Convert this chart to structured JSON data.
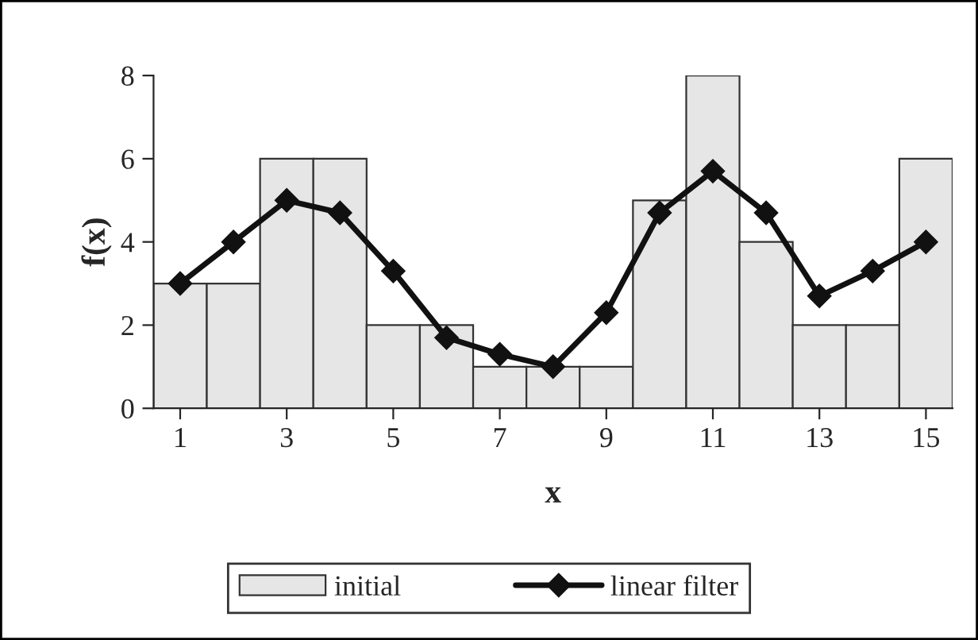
{
  "chart_data": {
    "type": "bar",
    "xlabel": "x",
    "ylabel": "f(x)",
    "x": [
      1,
      2,
      3,
      4,
      5,
      6,
      7,
      8,
      9,
      10,
      11,
      12,
      13,
      14,
      15
    ],
    "series": [
      {
        "name": "initial",
        "color": "#e6e6e6",
        "values": [
          3,
          3,
          6,
          6,
          2,
          2,
          1,
          1,
          1,
          5,
          8,
          4,
          2,
          2,
          6
        ]
      },
      {
        "name": "linear filter",
        "type": "line",
        "color": "#111111",
        "marker": "diamond",
        "values": [
          3,
          4,
          5,
          4.7,
          3.3,
          1.7,
          1.3,
          1,
          2.3,
          4.7,
          5.7,
          4.7,
          2.7,
          3.3,
          4
        ]
      }
    ],
    "xlim": [
      0.5,
      15.5
    ],
    "xticks": [
      1,
      3,
      5,
      7,
      9,
      11,
      13,
      15
    ],
    "ylim": [
      0,
      8
    ],
    "yticks": [
      0,
      2,
      4,
      6,
      8
    ],
    "grid": false,
    "legend": "bottom"
  }
}
